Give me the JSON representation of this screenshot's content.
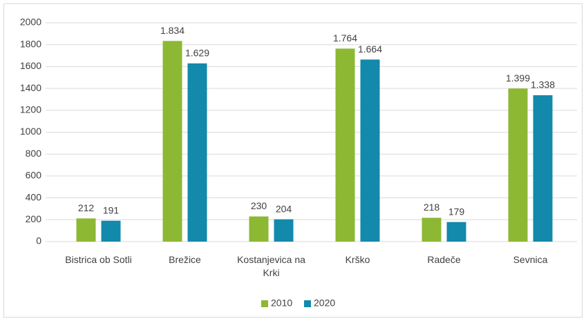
{
  "chart_data": {
    "type": "bar",
    "categories": [
      "Bistrica ob Sotli",
      "Brežice",
      "Kostanjevica na Krki",
      "Krško",
      "Radeče",
      "Sevnica"
    ],
    "series": [
      {
        "name": "2010",
        "color": "#8db833",
        "values": [
          212,
          1834,
          230,
          1764,
          218,
          1399
        ],
        "value_labels": [
          "212",
          "1.834",
          "230",
          "1.764",
          "218",
          "1.399"
        ]
      },
      {
        "name": "2020",
        "color": "#1389ab",
        "values": [
          191,
          1629,
          204,
          1664,
          179,
          1338
        ],
        "value_labels": [
          "191",
          "1.629",
          "204",
          "1.664",
          "179",
          "1.338"
        ]
      }
    ],
    "ylim": [
      0,
      2000
    ],
    "yticks": [
      0,
      200,
      400,
      600,
      800,
      1000,
      1200,
      1400,
      1600,
      1800,
      2000
    ],
    "grid": true,
    "legend": "bottom"
  }
}
